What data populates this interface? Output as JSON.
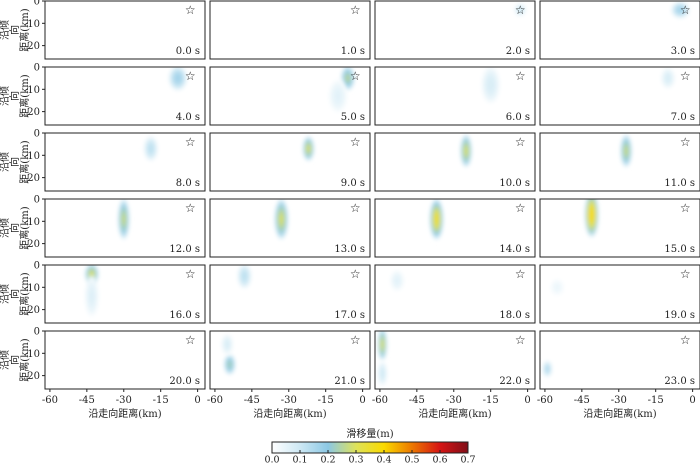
{
  "chart_data": {
    "type": "heatmap",
    "title": "",
    "xlabel": "沿走向距离(km)",
    "ylabel_lines": [
      "沿倾",
      "向",
      "距离(km)"
    ],
    "x_ticks": [
      "-60",
      "-45",
      "-30",
      "-15",
      "0"
    ],
    "y_ticks": [
      "0",
      "10",
      "20"
    ],
    "xlim": [
      -62,
      3
    ],
    "ylim": [
      0,
      26
    ],
    "epicenter": {
      "x": -3,
      "y": 4,
      "marker": "star"
    },
    "colorbar": {
      "label": "滑移量(m)",
      "ticks": [
        "0.0",
        "0.1",
        "0.2",
        "0.3",
        "0.4",
        "0.5",
        "0.6",
        "0.7"
      ],
      "range": [
        0,
        0.7
      ]
    },
    "panels": [
      {
        "time": "0.0 s",
        "patches": []
      },
      {
        "time": "1.0 s",
        "patches": []
      },
      {
        "time": "2.0 s",
        "patches": [
          {
            "x": -3,
            "y": 4,
            "rx": 2.5,
            "ry": 3,
            "slip": 0.1
          }
        ]
      },
      {
        "time": "3.0 s",
        "patches": [
          {
            "x": -5,
            "y": 4,
            "rx": 4,
            "ry": 4,
            "slip": 0.17
          }
        ]
      },
      {
        "time": "4.0 s",
        "patches": [
          {
            "x": -8,
            "y": 5,
            "rx": 4,
            "ry": 6,
            "slip": 0.17
          }
        ]
      },
      {
        "time": "5.0 s",
        "patches": [
          {
            "x": -6,
            "y": 5,
            "rx": 3,
            "ry": 6,
            "slip": 0.26
          },
          {
            "x": -10,
            "y": 13,
            "rx": 4,
            "ry": 8,
            "slip": 0.06
          }
        ]
      },
      {
        "time": "6.0 s",
        "patches": [
          {
            "x": -15,
            "y": 8,
            "rx": 4,
            "ry": 9,
            "slip": 0.08
          }
        ]
      },
      {
        "time": "7.0 s",
        "patches": [
          {
            "x": -10,
            "y": 5,
            "rx": 3,
            "ry": 5,
            "slip": 0.08
          }
        ]
      },
      {
        "time": "8.0 s",
        "patches": [
          {
            "x": -19,
            "y": 7,
            "rx": 3,
            "ry": 6,
            "slip": 0.13
          }
        ]
      },
      {
        "time": "9.0 s",
        "patches": [
          {
            "x": -22,
            "y": 7,
            "rx": 2.5,
            "ry": 6,
            "slip": 0.3
          }
        ]
      },
      {
        "time": "10.0 s",
        "patches": [
          {
            "x": -25,
            "y": 8,
            "rx": 2.5,
            "ry": 8,
            "slip": 0.3
          }
        ]
      },
      {
        "time": "11.0 s",
        "patches": [
          {
            "x": -27,
            "y": 8,
            "rx": 2.5,
            "ry": 8,
            "slip": 0.28
          }
        ]
      },
      {
        "time": "12.0 s",
        "patches": [
          {
            "x": -30,
            "y": 9,
            "rx": 2.5,
            "ry": 10,
            "slip": 0.28
          }
        ]
      },
      {
        "time": "13.0 s",
        "patches": [
          {
            "x": -33,
            "y": 9,
            "rx": 3,
            "ry": 10,
            "slip": 0.3
          }
        ]
      },
      {
        "time": "14.0 s",
        "patches": [
          {
            "x": -37,
            "y": 9,
            "rx": 3,
            "ry": 10,
            "slip": 0.36
          }
        ]
      },
      {
        "time": "15.0 s",
        "patches": [
          {
            "x": -41,
            "y": 7,
            "rx": 3,
            "ry": 11,
            "slip": 0.4
          }
        ]
      },
      {
        "time": "16.0 s",
        "patches": [
          {
            "x": -43,
            "y": 4,
            "rx": 3,
            "ry": 5,
            "slip": 0.3
          },
          {
            "x": -43,
            "y": 14,
            "rx": 3,
            "ry": 10,
            "slip": 0.07
          }
        ]
      },
      {
        "time": "17.0 s",
        "patches": [
          {
            "x": -48,
            "y": 5,
            "rx": 3,
            "ry": 6,
            "slip": 0.13
          }
        ]
      },
      {
        "time": "18.0 s",
        "patches": [
          {
            "x": -53,
            "y": 7,
            "rx": 3,
            "ry": 5,
            "slip": 0.06
          }
        ]
      },
      {
        "time": "19.0 s",
        "patches": [
          {
            "x": -55,
            "y": 10,
            "rx": 3,
            "ry": 4,
            "slip": 0.04
          }
        ]
      },
      {
        "time": "20.0 s",
        "patches": []
      },
      {
        "time": "21.0 s",
        "patches": [
          {
            "x": -54,
            "y": 15,
            "rx": 2.5,
            "ry": 5,
            "slip": 0.24
          },
          {
            "x": -55,
            "y": 6,
            "rx": 2.5,
            "ry": 5,
            "slip": 0.08
          }
        ]
      },
      {
        "time": "22.0 s",
        "patches": [
          {
            "x": -59,
            "y": 6,
            "rx": 2,
            "ry": 8,
            "slip": 0.3
          },
          {
            "x": -59,
            "y": 19,
            "rx": 2,
            "ry": 6,
            "slip": 0.1
          }
        ]
      },
      {
        "time": "23.0 s",
        "patches": [
          {
            "x": -59,
            "y": 17,
            "rx": 2,
            "ry": 4,
            "slip": 0.15
          }
        ]
      }
    ]
  }
}
